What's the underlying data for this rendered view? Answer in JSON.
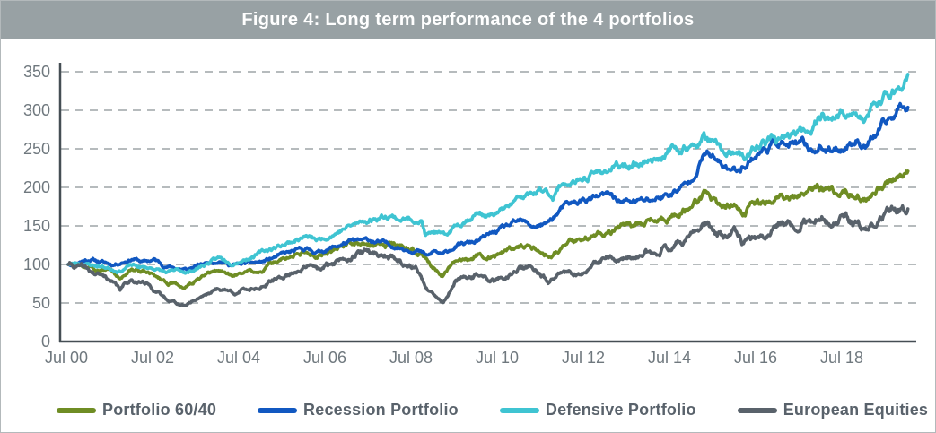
{
  "header": {
    "title": "Figure 4: Long term performance of the 4 portfolios"
  },
  "colors": {
    "title_bar_bg": "#98a1a4",
    "title_text": "#ffffff",
    "grid": "#b6bbbd",
    "axis": "#454e54",
    "tick_label": "#6f787e",
    "legend_text": "#59626b",
    "panel_border": "#b3b9bb"
  },
  "chart_data": {
    "type": "line",
    "title": "Figure 4: Long term performance of the 4 portfolios",
    "xlabel": "",
    "ylabel": "",
    "x_axis": {
      "tick_labels": [
        "Jul 00",
        "Jul 02",
        "Jul 04",
        "Jul 06",
        "Jul 08",
        "Jul 10",
        "Jul 12",
        "Jul 14",
        "Jul 16",
        "Jul 18"
      ],
      "tick_years": [
        2000.5,
        2002.5,
        2004.5,
        2006.5,
        2008.5,
        2010.5,
        2012.5,
        2014.5,
        2016.5,
        2018.5
      ],
      "range_years": [
        2000.5,
        2020.0
      ]
    },
    "y_axis": {
      "ticks": [
        0,
        50,
        100,
        150,
        200,
        250,
        300,
        350
      ],
      "range": [
        0,
        350
      ]
    },
    "grid": "horizontal-dashed",
    "legend_position": "bottom",
    "base_value": 100,
    "series": [
      {
        "name": "Portfolio 60/40",
        "color": "#6f8d24",
        "points": [
          [
            2000.5,
            100
          ],
          [
            2000.9,
            97
          ],
          [
            2001.2,
            93
          ],
          [
            2001.45,
            95
          ],
          [
            2001.7,
            82
          ],
          [
            2001.95,
            93
          ],
          [
            2002.2,
            92
          ],
          [
            2002.5,
            85
          ],
          [
            2002.8,
            77
          ],
          [
            2003.2,
            70
          ],
          [
            2003.6,
            83
          ],
          [
            2004,
            91
          ],
          [
            2004.35,
            86
          ],
          [
            2004.7,
            90
          ],
          [
            2005,
            94
          ],
          [
            2005.5,
            107
          ],
          [
            2006,
            116
          ],
          [
            2006.35,
            112
          ],
          [
            2006.7,
            121
          ],
          [
            2007,
            129
          ],
          [
            2007.4,
            125
          ],
          [
            2008,
            128
          ],
          [
            2008.4,
            119
          ],
          [
            2008.7,
            114
          ],
          [
            2009.2,
            85
          ],
          [
            2009.5,
            102
          ],
          [
            2010,
            113
          ],
          [
            2010.4,
            110
          ],
          [
            2010.7,
            119
          ],
          [
            2011,
            124
          ],
          [
            2011.4,
            123
          ],
          [
            2011.65,
            113
          ],
          [
            2012,
            125
          ],
          [
            2012.5,
            134
          ],
          [
            2013,
            143
          ],
          [
            2013.5,
            150
          ],
          [
            2014,
            155
          ],
          [
            2014.5,
            163
          ],
          [
            2014.9,
            172
          ],
          [
            2015.3,
            192
          ],
          [
            2015.75,
            174
          ],
          [
            2016,
            180
          ],
          [
            2016.15,
            170
          ],
          [
            2016.5,
            178
          ],
          [
            2017,
            183
          ],
          [
            2017.5,
            194
          ],
          [
            2018,
            201
          ],
          [
            2018.25,
            193
          ],
          [
            2018.55,
            200
          ],
          [
            2019,
            184
          ],
          [
            2019.3,
            196
          ],
          [
            2019.6,
            206
          ],
          [
            2020,
            220
          ]
        ]
      },
      {
        "name": "Recession Portfolio",
        "color": "#1158c1",
        "points": [
          [
            2000.5,
            100
          ],
          [
            2000.75,
            104
          ],
          [
            2001,
            107
          ],
          [
            2001.3,
            103
          ],
          [
            2001.55,
            100
          ],
          [
            2002,
            108
          ],
          [
            2002.25,
            103
          ],
          [
            2002.5,
            106
          ],
          [
            2002.75,
            98
          ],
          [
            2003.25,
            93
          ],
          [
            2003.6,
            100
          ],
          [
            2004,
            106
          ],
          [
            2004.3,
            99
          ],
          [
            2004.6,
            101
          ],
          [
            2005,
            103
          ],
          [
            2005.5,
            113
          ],
          [
            2006,
            120
          ],
          [
            2006.3,
            116
          ],
          [
            2006.7,
            123
          ],
          [
            2007,
            129
          ],
          [
            2007.5,
            131
          ],
          [
            2008,
            125
          ],
          [
            2008.3,
            121
          ],
          [
            2008.6,
            119
          ],
          [
            2008.85,
            110
          ],
          [
            2009,
            117
          ],
          [
            2009.2,
            112
          ],
          [
            2009.5,
            124
          ],
          [
            2010,
            130
          ],
          [
            2010.35,
            140
          ],
          [
            2010.7,
            149
          ],
          [
            2011,
            155
          ],
          [
            2011.3,
            149
          ],
          [
            2011.6,
            152
          ],
          [
            2012,
            174
          ],
          [
            2012.5,
            184
          ],
          [
            2013.1,
            190
          ],
          [
            2013.35,
            181
          ],
          [
            2013.7,
            182
          ],
          [
            2014,
            183
          ],
          [
            2014.5,
            192
          ],
          [
            2014.9,
            205
          ],
          [
            2015.3,
            246
          ],
          [
            2015.65,
            228
          ],
          [
            2016,
            221
          ],
          [
            2016.4,
            240
          ],
          [
            2016.85,
            256
          ],
          [
            2017,
            261
          ],
          [
            2017.2,
            254
          ],
          [
            2017.55,
            254
          ],
          [
            2017.8,
            247
          ],
          [
            2017.95,
            255
          ],
          [
            2018.2,
            245
          ],
          [
            2018.5,
            253
          ],
          [
            2018.8,
            262
          ],
          [
            2019,
            256
          ],
          [
            2019.2,
            265
          ],
          [
            2019.45,
            280
          ],
          [
            2019.7,
            295
          ],
          [
            2019.9,
            310
          ],
          [
            2020,
            307
          ]
        ]
      },
      {
        "name": "Defensive Portfolio",
        "color": "#3fc4d2",
        "points": [
          [
            2000.5,
            100
          ],
          [
            2000.8,
            102
          ],
          [
            2001.1,
            99
          ],
          [
            2001.4,
            96
          ],
          [
            2001.7,
            92
          ],
          [
            2001.95,
            99
          ],
          [
            2002.2,
            96
          ],
          [
            2002.5,
            95
          ],
          [
            2002.8,
            89
          ],
          [
            2003.05,
            92
          ],
          [
            2003.3,
            90
          ],
          [
            2003.6,
            98
          ],
          [
            2004,
            108
          ],
          [
            2004.3,
            103
          ],
          [
            2004.65,
            108
          ],
          [
            2005,
            116
          ],
          [
            2005.5,
            126
          ],
          [
            2006,
            136
          ],
          [
            2006.3,
            131
          ],
          [
            2006.7,
            141
          ],
          [
            2007,
            149
          ],
          [
            2007.4,
            156
          ],
          [
            2007.95,
            165
          ],
          [
            2008.2,
            159
          ],
          [
            2008.7,
            158
          ],
          [
            2008.8,
            137
          ],
          [
            2009,
            142
          ],
          [
            2009.25,
            135
          ],
          [
            2009.5,
            151
          ],
          [
            2010,
            167
          ],
          [
            2010.35,
            162
          ],
          [
            2010.7,
            174
          ],
          [
            2011,
            186
          ],
          [
            2011.55,
            195
          ],
          [
            2011.75,
            189
          ],
          [
            2012,
            207
          ],
          [
            2012.3,
            204
          ],
          [
            2012.5,
            212
          ],
          [
            2013,
            223
          ],
          [
            2013.5,
            228
          ],
          [
            2014,
            236
          ],
          [
            2014.55,
            248
          ],
          [
            2014.8,
            252
          ],
          [
            2015,
            250
          ],
          [
            2015.25,
            264
          ],
          [
            2015.7,
            246
          ],
          [
            2016,
            241
          ],
          [
            2016.2,
            236
          ],
          [
            2016.5,
            254
          ],
          [
            2016.9,
            263
          ],
          [
            2017.05,
            257
          ],
          [
            2017.3,
            266
          ],
          [
            2017.55,
            273
          ],
          [
            2017.8,
            281
          ],
          [
            2018,
            297
          ],
          [
            2018.2,
            290
          ],
          [
            2018.45,
            293
          ],
          [
            2018.65,
            299
          ],
          [
            2019,
            284
          ],
          [
            2019.15,
            300
          ],
          [
            2019.4,
            313
          ],
          [
            2019.6,
            322
          ],
          [
            2019.8,
            333
          ],
          [
            2020,
            348
          ]
        ]
      },
      {
        "name": "European Equities",
        "color": "#59626b",
        "points": [
          [
            2000.5,
            100
          ],
          [
            2000.8,
            96
          ],
          [
            2001.1,
            88
          ],
          [
            2001.4,
            83
          ],
          [
            2001.7,
            67
          ],
          [
            2001.95,
            81
          ],
          [
            2002.2,
            78
          ],
          [
            2002.45,
            70
          ],
          [
            2002.7,
            58
          ],
          [
            2003.2,
            46
          ],
          [
            2003.6,
            60
          ],
          [
            2004,
            69
          ],
          [
            2004.35,
            64
          ],
          [
            2004.7,
            68
          ],
          [
            2005,
            72
          ],
          [
            2005.5,
            84
          ],
          [
            2006,
            98
          ],
          [
            2006.35,
            92
          ],
          [
            2006.7,
            103
          ],
          [
            2007,
            112
          ],
          [
            2007.45,
            116
          ],
          [
            2008,
            111
          ],
          [
            2008.3,
            101
          ],
          [
            2008.6,
            95
          ],
          [
            2008.85,
            65
          ],
          [
            2009.2,
            50
          ],
          [
            2009.5,
            78
          ],
          [
            2010,
            86
          ],
          [
            2010.4,
            78
          ],
          [
            2010.7,
            86
          ],
          [
            2011,
            95
          ],
          [
            2011.35,
            94
          ],
          [
            2011.65,
            76
          ],
          [
            2011.9,
            85
          ],
          [
            2012.2,
            90
          ],
          [
            2012.45,
            88
          ],
          [
            2013,
            108
          ],
          [
            2013.5,
            103
          ],
          [
            2014,
            115
          ],
          [
            2014.5,
            126
          ],
          [
            2014.9,
            135
          ],
          [
            2015.3,
            152
          ],
          [
            2015.75,
            133
          ],
          [
            2016,
            140
          ],
          [
            2016.15,
            128
          ],
          [
            2016.5,
            133
          ],
          [
            2017,
            153
          ],
          [
            2017.5,
            156
          ],
          [
            2018,
            163
          ],
          [
            2018.25,
            152
          ],
          [
            2018.55,
            160
          ],
          [
            2019,
            142
          ],
          [
            2019.3,
            155
          ],
          [
            2019.6,
            166
          ],
          [
            2020,
            175
          ]
        ]
      }
    ]
  }
}
